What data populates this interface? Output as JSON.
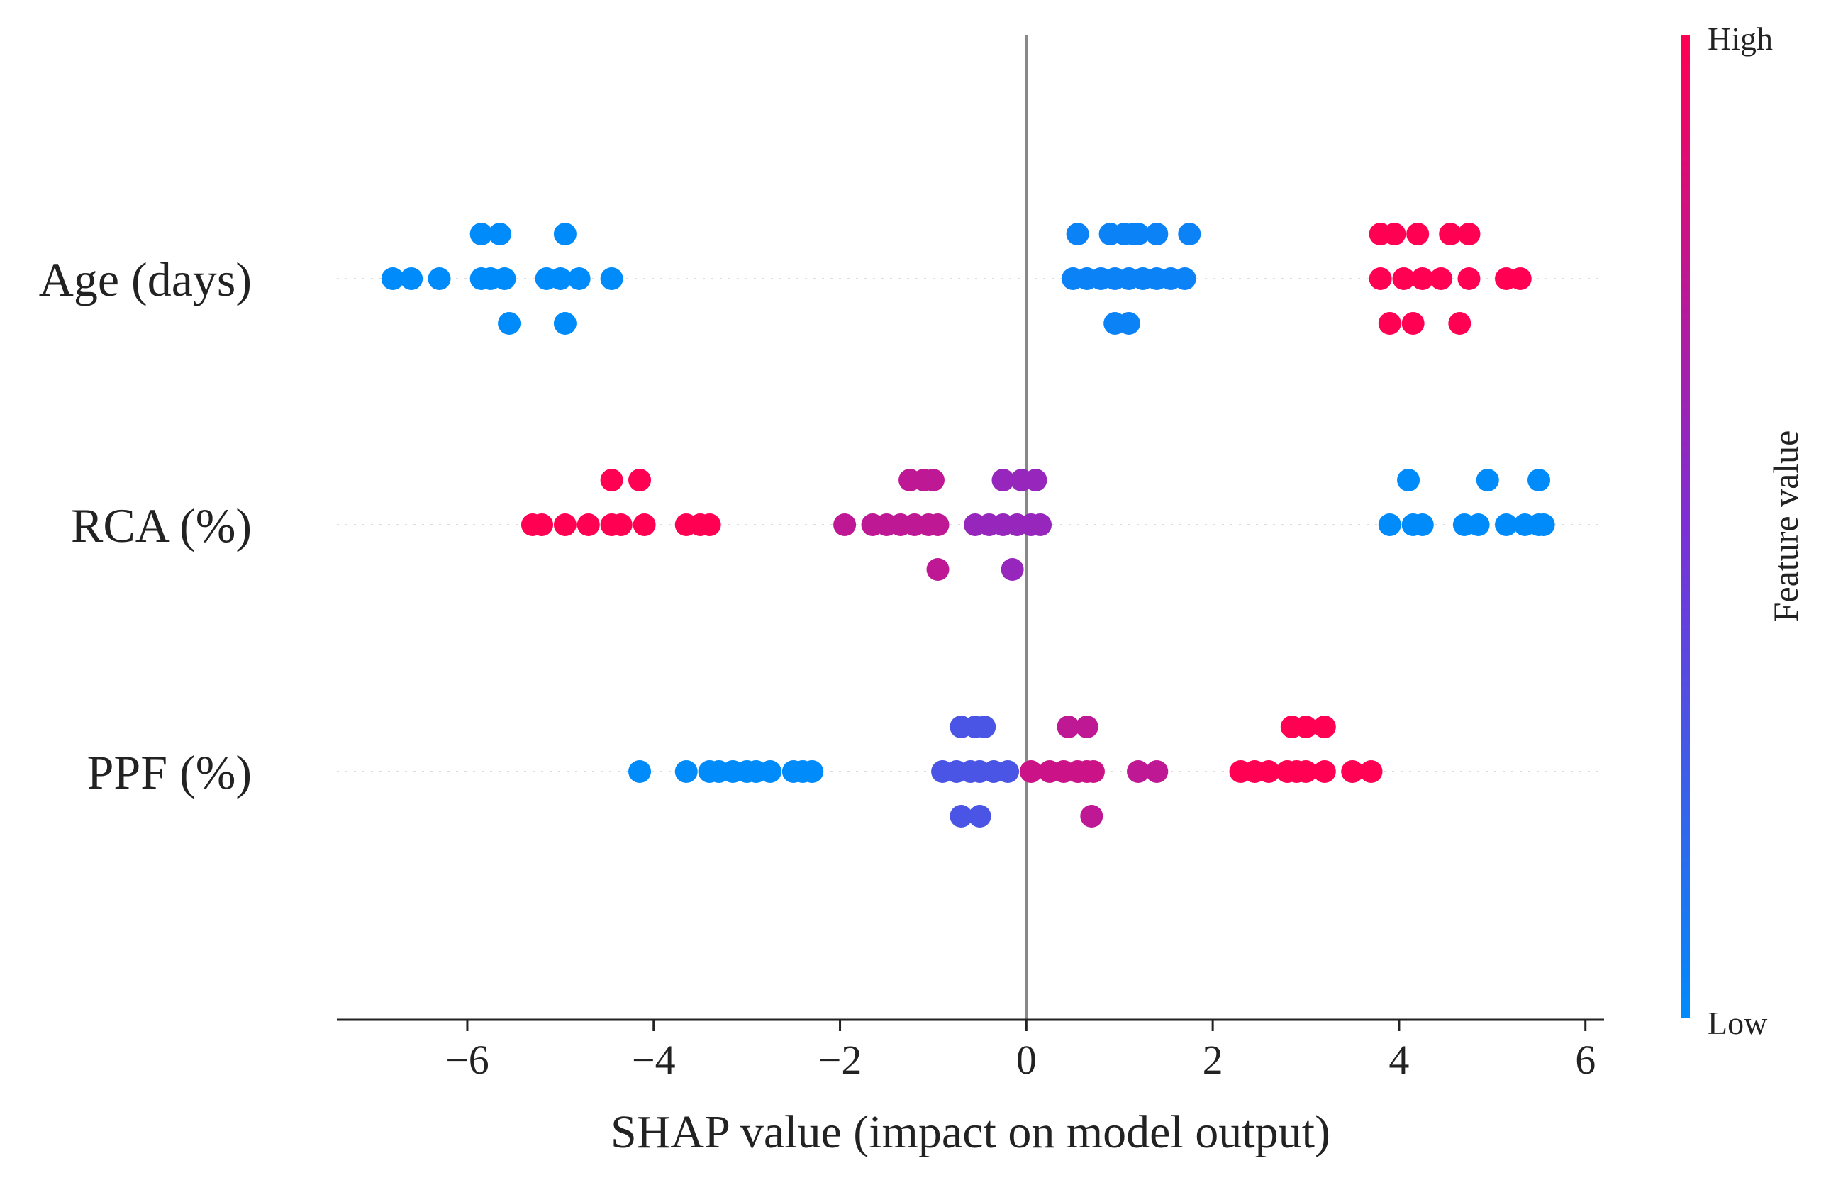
{
  "chart_data": {
    "type": "scatter",
    "subtype": "shap-beeswarm",
    "xlabel": "SHAP value (impact on model output)",
    "xlim": [
      -7.4,
      6.2
    ],
    "xticks": [
      -6,
      -4,
      -2,
      0,
      2,
      4,
      6
    ],
    "xtick_labels": [
      "−6",
      "−4",
      "−2",
      "0",
      "2",
      "4",
      "6"
    ],
    "features": [
      "Age (days)",
      "RCA (%)",
      "PPF (%)"
    ],
    "colorbar": {
      "label": "Feature value",
      "high": "High",
      "low": "Low",
      "high_color": "#ff0052",
      "low_color": "#008bfb"
    },
    "points": [
      {
        "f": 0,
        "x": -5.85,
        "o": 1,
        "v": 0.0
      },
      {
        "f": 0,
        "x": -5.65,
        "o": 1,
        "v": 0.0
      },
      {
        "f": 0,
        "x": -4.95,
        "o": 1,
        "v": 0.0
      },
      {
        "f": 0,
        "x": -6.8,
        "o": 0,
        "v": 0.0
      },
      {
        "f": 0,
        "x": -6.6,
        "o": 0,
        "v": 0.0
      },
      {
        "f": 0,
        "x": -6.3,
        "o": 0,
        "v": 0.0
      },
      {
        "f": 0,
        "x": -5.85,
        "o": 0,
        "v": 0.0
      },
      {
        "f": 0,
        "x": -5.75,
        "o": 0,
        "v": 0.0
      },
      {
        "f": 0,
        "x": -5.6,
        "o": 0,
        "v": 0.0
      },
      {
        "f": 0,
        "x": -5.15,
        "o": 0,
        "v": 0.0
      },
      {
        "f": 0,
        "x": -5.0,
        "o": 0,
        "v": 0.0
      },
      {
        "f": 0,
        "x": -4.8,
        "o": 0,
        "v": 0.0
      },
      {
        "f": 0,
        "x": -4.45,
        "o": 0,
        "v": 0.0
      },
      {
        "f": 0,
        "x": -5.55,
        "o": -1,
        "v": 0.0
      },
      {
        "f": 0,
        "x": -4.95,
        "o": -1,
        "v": 0.0
      },
      {
        "f": 0,
        "x": 0.55,
        "o": 1,
        "v": 0.05
      },
      {
        "f": 0,
        "x": 0.9,
        "o": 1,
        "v": 0.05
      },
      {
        "f": 0,
        "x": 1.05,
        "o": 1,
        "v": 0.05
      },
      {
        "f": 0,
        "x": 1.15,
        "o": 1,
        "v": 0.05
      },
      {
        "f": 0,
        "x": 1.2,
        "o": 1,
        "v": 0.05
      },
      {
        "f": 0,
        "x": 1.4,
        "o": 1,
        "v": 0.05
      },
      {
        "f": 0,
        "x": 1.75,
        "o": 1,
        "v": 0.05
      },
      {
        "f": 0,
        "x": 0.5,
        "o": 0,
        "v": 0.05
      },
      {
        "f": 0,
        "x": 0.65,
        "o": 0,
        "v": 0.05
      },
      {
        "f": 0,
        "x": 0.8,
        "o": 0,
        "v": 0.05
      },
      {
        "f": 0,
        "x": 0.95,
        "o": 0,
        "v": 0.05
      },
      {
        "f": 0,
        "x": 1.1,
        "o": 0,
        "v": 0.05
      },
      {
        "f": 0,
        "x": 1.25,
        "o": 0,
        "v": 0.05
      },
      {
        "f": 0,
        "x": 1.4,
        "o": 0,
        "v": 0.05
      },
      {
        "f": 0,
        "x": 1.55,
        "o": 0,
        "v": 0.05
      },
      {
        "f": 0,
        "x": 1.7,
        "o": 0,
        "v": 0.05
      },
      {
        "f": 0,
        "x": 0.95,
        "o": -1,
        "v": 0.05
      },
      {
        "f": 0,
        "x": 1.1,
        "o": -1,
        "v": 0.05
      },
      {
        "f": 0,
        "x": 3.8,
        "o": 1,
        "v": 1.0
      },
      {
        "f": 0,
        "x": 3.95,
        "o": 1,
        "v": 1.0
      },
      {
        "f": 0,
        "x": 4.2,
        "o": 1,
        "v": 1.0
      },
      {
        "f": 0,
        "x": 4.55,
        "o": 1,
        "v": 1.0
      },
      {
        "f": 0,
        "x": 4.75,
        "o": 1,
        "v": 1.0
      },
      {
        "f": 0,
        "x": 3.8,
        "o": 0,
        "v": 1.0
      },
      {
        "f": 0,
        "x": 4.05,
        "o": 0,
        "v": 1.0
      },
      {
        "f": 0,
        "x": 4.25,
        "o": 0,
        "v": 1.0
      },
      {
        "f": 0,
        "x": 4.45,
        "o": 0,
        "v": 1.0
      },
      {
        "f": 0,
        "x": 4.75,
        "o": 0,
        "v": 1.0
      },
      {
        "f": 0,
        "x": 5.15,
        "o": 0,
        "v": 1.0
      },
      {
        "f": 0,
        "x": 5.3,
        "o": 0,
        "v": 1.0
      },
      {
        "f": 0,
        "x": 3.9,
        "o": -1,
        "v": 1.0
      },
      {
        "f": 0,
        "x": 4.15,
        "o": -1,
        "v": 1.0
      },
      {
        "f": 0,
        "x": 4.65,
        "o": -1,
        "v": 1.0
      },
      {
        "f": 1,
        "x": -4.45,
        "o": 1,
        "v": 1.0
      },
      {
        "f": 1,
        "x": -4.15,
        "o": 1,
        "v": 1.0
      },
      {
        "f": 1,
        "x": -5.3,
        "o": 0,
        "v": 1.0
      },
      {
        "f": 1,
        "x": -5.2,
        "o": 0,
        "v": 1.0
      },
      {
        "f": 1,
        "x": -4.95,
        "o": 0,
        "v": 1.0
      },
      {
        "f": 1,
        "x": -4.7,
        "o": 0,
        "v": 1.0
      },
      {
        "f": 1,
        "x": -4.45,
        "o": 0,
        "v": 1.0
      },
      {
        "f": 1,
        "x": -4.35,
        "o": 0,
        "v": 1.0
      },
      {
        "f": 1,
        "x": -4.1,
        "o": 0,
        "v": 1.0
      },
      {
        "f": 1,
        "x": -3.65,
        "o": 0,
        "v": 1.0
      },
      {
        "f": 1,
        "x": -3.5,
        "o": 0,
        "v": 1.0
      },
      {
        "f": 1,
        "x": -3.4,
        "o": 0,
        "v": 1.0
      },
      {
        "f": 1,
        "x": -1.25,
        "o": 1,
        "v": 0.75
      },
      {
        "f": 1,
        "x": -1.1,
        "o": 1,
        "v": 0.75
      },
      {
        "f": 1,
        "x": -1.0,
        "o": 1,
        "v": 0.75
      },
      {
        "f": 1,
        "x": -1.95,
        "o": 0,
        "v": 0.75
      },
      {
        "f": 1,
        "x": -1.65,
        "o": 0,
        "v": 0.75
      },
      {
        "f": 1,
        "x": -1.5,
        "o": 0,
        "v": 0.75
      },
      {
        "f": 1,
        "x": -1.35,
        "o": 0,
        "v": 0.75
      },
      {
        "f": 1,
        "x": -1.2,
        "o": 0,
        "v": 0.75
      },
      {
        "f": 1,
        "x": -1.05,
        "o": 0,
        "v": 0.75
      },
      {
        "f": 1,
        "x": -0.95,
        "o": 0,
        "v": 0.75
      },
      {
        "f": 1,
        "x": -0.95,
        "o": -1,
        "v": 0.75
      },
      {
        "f": 1,
        "x": -0.25,
        "o": 1,
        "v": 0.6
      },
      {
        "f": 1,
        "x": -0.05,
        "o": 1,
        "v": 0.6
      },
      {
        "f": 1,
        "x": 0.1,
        "o": 1,
        "v": 0.6
      },
      {
        "f": 1,
        "x": -0.55,
        "o": 0,
        "v": 0.6
      },
      {
        "f": 1,
        "x": -0.4,
        "o": 0,
        "v": 0.6
      },
      {
        "f": 1,
        "x": -0.25,
        "o": 0,
        "v": 0.6
      },
      {
        "f": 1,
        "x": -0.1,
        "o": 0,
        "v": 0.6
      },
      {
        "f": 1,
        "x": 0.05,
        "o": 0,
        "v": 0.6
      },
      {
        "f": 1,
        "x": 0.15,
        "o": 0,
        "v": 0.6
      },
      {
        "f": 1,
        "x": -0.15,
        "o": -1,
        "v": 0.6
      },
      {
        "f": 1,
        "x": 4.1,
        "o": 1,
        "v": 0.0
      },
      {
        "f": 1,
        "x": 4.95,
        "o": 1,
        "v": 0.0
      },
      {
        "f": 1,
        "x": 5.5,
        "o": 1,
        "v": 0.0
      },
      {
        "f": 1,
        "x": 3.9,
        "o": 0,
        "v": 0.0
      },
      {
        "f": 1,
        "x": 4.15,
        "o": 0,
        "v": 0.0
      },
      {
        "f": 1,
        "x": 4.25,
        "o": 0,
        "v": 0.0
      },
      {
        "f": 1,
        "x": 4.7,
        "o": 0,
        "v": 0.0
      },
      {
        "f": 1,
        "x": 4.85,
        "o": 0,
        "v": 0.0
      },
      {
        "f": 1,
        "x": 5.15,
        "o": 0,
        "v": 0.0
      },
      {
        "f": 1,
        "x": 5.35,
        "o": 0,
        "v": 0.0
      },
      {
        "f": 1,
        "x": 5.5,
        "o": 0,
        "v": 0.0
      },
      {
        "f": 1,
        "x": 5.55,
        "o": 0,
        "v": 0.0
      },
      {
        "f": 2,
        "x": -4.15,
        "o": 0,
        "v": 0.0
      },
      {
        "f": 2,
        "x": -3.65,
        "o": 0,
        "v": 0.0
      },
      {
        "f": 2,
        "x": -3.4,
        "o": 0,
        "v": 0.0
      },
      {
        "f": 2,
        "x": -3.3,
        "o": 0,
        "v": 0.0
      },
      {
        "f": 2,
        "x": -3.15,
        "o": 0,
        "v": 0.0
      },
      {
        "f": 2,
        "x": -3.0,
        "o": 0,
        "v": 0.0
      },
      {
        "f": 2,
        "x": -2.9,
        "o": 0,
        "v": 0.0
      },
      {
        "f": 2,
        "x": -2.75,
        "o": 0,
        "v": 0.0
      },
      {
        "f": 2,
        "x": -2.5,
        "o": 0,
        "v": 0.0
      },
      {
        "f": 2,
        "x": -2.4,
        "o": 0,
        "v": 0.0
      },
      {
        "f": 2,
        "x": -2.3,
        "o": 0,
        "v": 0.0
      },
      {
        "f": 2,
        "x": -0.7,
        "o": 1,
        "v": 0.3
      },
      {
        "f": 2,
        "x": -0.55,
        "o": 1,
        "v": 0.3
      },
      {
        "f": 2,
        "x": -0.45,
        "o": 1,
        "v": 0.3
      },
      {
        "f": 2,
        "x": -0.9,
        "o": 0,
        "v": 0.3
      },
      {
        "f": 2,
        "x": -0.75,
        "o": 0,
        "v": 0.3
      },
      {
        "f": 2,
        "x": -0.6,
        "o": 0,
        "v": 0.3
      },
      {
        "f": 2,
        "x": -0.5,
        "o": 0,
        "v": 0.3
      },
      {
        "f": 2,
        "x": -0.35,
        "o": 0,
        "v": 0.3
      },
      {
        "f": 2,
        "x": -0.2,
        "o": 0,
        "v": 0.3
      },
      {
        "f": 2,
        "x": -0.7,
        "o": -1,
        "v": 0.3
      },
      {
        "f": 2,
        "x": -0.5,
        "o": -1,
        "v": 0.3
      },
      {
        "f": 2,
        "x": 0.45,
        "o": 1,
        "v": 0.75
      },
      {
        "f": 2,
        "x": 0.65,
        "o": 1,
        "v": 0.75
      },
      {
        "f": 2,
        "x": 0.05,
        "o": 0,
        "v": 0.8
      },
      {
        "f": 2,
        "x": 0.25,
        "o": 0,
        "v": 0.8
      },
      {
        "f": 2,
        "x": 0.4,
        "o": 0,
        "v": 0.8
      },
      {
        "f": 2,
        "x": 0.55,
        "o": 0,
        "v": 0.8
      },
      {
        "f": 2,
        "x": 0.65,
        "o": 0,
        "v": 0.8
      },
      {
        "f": 2,
        "x": 0.72,
        "o": 0,
        "v": 0.8
      },
      {
        "f": 2,
        "x": 1.2,
        "o": 0,
        "v": 0.75
      },
      {
        "f": 2,
        "x": 1.4,
        "o": 0,
        "v": 0.75
      },
      {
        "f": 2,
        "x": 0.7,
        "o": -1,
        "v": 0.75
      },
      {
        "f": 2,
        "x": 2.85,
        "o": 1,
        "v": 1.0
      },
      {
        "f": 2,
        "x": 3.0,
        "o": 1,
        "v": 1.0
      },
      {
        "f": 2,
        "x": 3.2,
        "o": 1,
        "v": 1.0
      },
      {
        "f": 2,
        "x": 2.3,
        "o": 0,
        "v": 1.0
      },
      {
        "f": 2,
        "x": 2.45,
        "o": 0,
        "v": 1.0
      },
      {
        "f": 2,
        "x": 2.6,
        "o": 0,
        "v": 1.0
      },
      {
        "f": 2,
        "x": 2.8,
        "o": 0,
        "v": 1.0
      },
      {
        "f": 2,
        "x": 2.9,
        "o": 0,
        "v": 1.0
      },
      {
        "f": 2,
        "x": 3.0,
        "o": 0,
        "v": 1.0
      },
      {
        "f": 2,
        "x": 3.2,
        "o": 0,
        "v": 1.0
      },
      {
        "f": 2,
        "x": 3.5,
        "o": 0,
        "v": 1.0
      },
      {
        "f": 2,
        "x": 3.7,
        "o": 0,
        "v": 1.0
      }
    ]
  }
}
